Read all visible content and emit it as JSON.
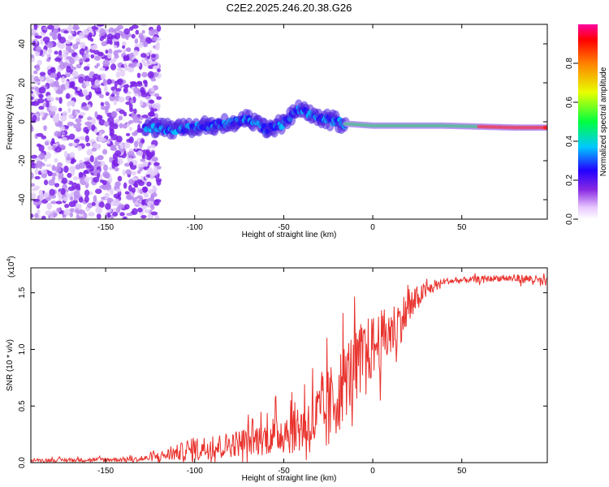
{
  "title": "C2E2.2025.246.20.38.G26",
  "chart_data": [
    {
      "type": "heatmap",
      "xlabel": "Height of straight line (km)",
      "ylabel": "Frequency (Hz)",
      "xlim": [
        -192,
        98
      ],
      "ylim": [
        -50,
        50
      ],
      "xticks": [
        "-150",
        "-100",
        "-50",
        "0",
        "50"
      ],
      "xtick_values": [
        -150,
        -100,
        -50,
        0,
        50
      ],
      "yticks": [
        "-40",
        "-20",
        "0",
        "20",
        "40"
      ],
      "ytick_values": [
        -40,
        -20,
        0,
        20,
        40
      ],
      "noise_region_x": [
        -192,
        -120
      ],
      "ridge": {
        "description_points": [
          {
            "x": -128,
            "y": -3
          },
          {
            "x": -110,
            "y": -4
          },
          {
            "x": -100,
            "y": -3
          },
          {
            "x": -85,
            "y": -1
          },
          {
            "x": -70,
            "y": 1
          },
          {
            "x": -60,
            "y": -4
          },
          {
            "x": -50,
            "y": -1
          },
          {
            "x": -42,
            "y": 6
          },
          {
            "x": -30,
            "y": 2
          },
          {
            "x": -15,
            "y": -1
          },
          {
            "x": 0,
            "y": -2
          },
          {
            "x": 40,
            "y": -2
          },
          {
            "x": 80,
            "y": -3
          },
          {
            "x": 98,
            "y": -3
          }
        ]
      },
      "colorbar": {
        "label": "Normalized spectral amplitude",
        "range": [
          0,
          1
        ],
        "ticks": [
          "0.0",
          "0.2",
          "0.4",
          "0.6",
          "0.8"
        ],
        "tick_values": [
          0,
          0.2,
          0.4,
          0.6,
          0.8
        ]
      }
    },
    {
      "type": "line",
      "xlabel": "Height of straight line (km)",
      "ylabel": "SNR (10 * v/v)",
      "y_multiplier": "(x10",
      "y_multiplier_exp": "4",
      "y_multiplier_close": ")",
      "xlim": [
        -192,
        98
      ],
      "ylim": [
        0,
        1.72
      ],
      "xticks": [
        "-150",
        "-100",
        "-50",
        "0",
        "50"
      ],
      "xtick_values": [
        -150,
        -100,
        -50,
        0,
        50
      ],
      "yticks": [
        "0.0",
        "0.5",
        "1.0",
        "1.5"
      ],
      "ytick_values": [
        0,
        0.5,
        1.0,
        1.5
      ],
      "series": [
        {
          "name": "SNR",
          "color": "#e8312c",
          "envelope": [
            {
              "x": -192,
              "base": 0.02,
              "amp": 0.02
            },
            {
              "x": -130,
              "base": 0.03,
              "amp": 0.03
            },
            {
              "x": -115,
              "base": 0.07,
              "amp": 0.08
            },
            {
              "x": -100,
              "base": 0.12,
              "amp": 0.15
            },
            {
              "x": -80,
              "base": 0.16,
              "amp": 0.16
            },
            {
              "x": -60,
              "base": 0.22,
              "amp": 0.22
            },
            {
              "x": -45,
              "base": 0.3,
              "amp": 0.32
            },
            {
              "x": -35,
              "base": 0.35,
              "amp": 0.4
            },
            {
              "x": -25,
              "base": 0.45,
              "amp": 0.55
            },
            {
              "x": -15,
              "base": 0.75,
              "amp": 0.5
            },
            {
              "x": -5,
              "base": 0.95,
              "amp": 0.45
            },
            {
              "x": 10,
              "base": 1.15,
              "amp": 0.35
            },
            {
              "x": 20,
              "base": 1.35,
              "amp": 0.25
            },
            {
              "x": 28,
              "base": 1.5,
              "amp": 0.12
            },
            {
              "x": 40,
              "base": 1.6,
              "amp": 0.04
            },
            {
              "x": 70,
              "base": 1.63,
              "amp": 0.04
            },
            {
              "x": 90,
              "base": 1.62,
              "amp": 0.06
            },
            {
              "x": 98,
              "base": 1.58,
              "amp": 0.07
            }
          ]
        }
      ]
    }
  ]
}
